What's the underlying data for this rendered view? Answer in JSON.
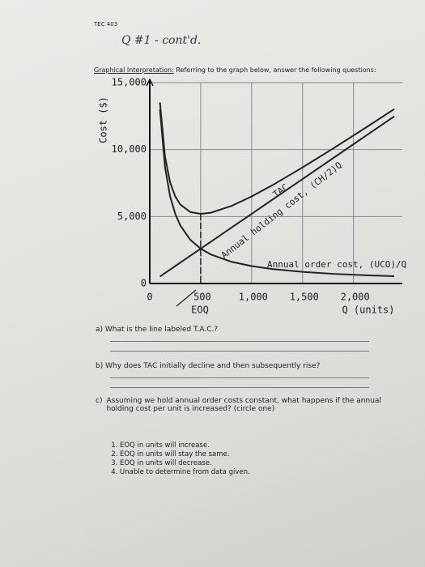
{
  "header": {
    "course": "TEC 403",
    "handwritten": "Q #1 - cont'd."
  },
  "intro": {
    "label": "Graphical Interpretation:",
    "text": "Referring to the graph below, answer the following questions:"
  },
  "chart_data": {
    "type": "line",
    "ylabel": "Cost ($)",
    "xlabel": "Q (units)",
    "eoq_label": "EOQ",
    "eoq": 500,
    "xlim": [
      0,
      2400
    ],
    "ylim": [
      0,
      15000
    ],
    "xticks": [
      0,
      500,
      {
        "value": 1000,
        "label": "1,000"
      },
      {
        "value": 1500,
        "label": "1,500"
      },
      {
        "value": 2000,
        "label": "2,000"
      }
    ],
    "yticks": [
      0,
      {
        "value": 5000,
        "label": "5,000"
      },
      {
        "value": 10000,
        "label": "10,000"
      },
      {
        "value": 15000,
        "label": "15,000"
      }
    ],
    "grid": true,
    "x": [
      100,
      150,
      200,
      250,
      300,
      400,
      500,
      600,
      800,
      1000,
      1200,
      1500,
      1800,
      2100,
      2400
    ],
    "series": [
      {
        "name": "TAC",
        "color": "#222222",
        "values": [
          13520,
          9447,
          7540,
          6500,
          5893,
          5330,
          5200,
          5287,
          5785,
          6500,
          7323,
          8667,
          10082,
          11539,
          13022
        ]
      },
      {
        "name": "Annual holding cost, (CH/2)Q",
        "color": "#222222",
        "values": [
          520,
          780,
          1040,
          1300,
          1560,
          2080,
          2600,
          3120,
          4160,
          5200,
          6240,
          7800,
          9360,
          10920,
          12480
        ]
      },
      {
        "name": "Annual order cost, (UCO)/Q",
        "color": "#222222",
        "values": [
          13000,
          8667,
          6500,
          5200,
          4333,
          3250,
          2600,
          2167,
          1625,
          1300,
          1083,
          867,
          722,
          619,
          542
        ]
      }
    ]
  },
  "questions": [
    {
      "letter": "a)",
      "text": "What is the line labeled T.A.C.?"
    },
    {
      "letter": "b)",
      "text": "Why does TAC initially decline and then subsequently rise?"
    },
    {
      "letter": "c)",
      "text": "Assuming we hold annual order costs constant, what happens if the annual holding cost per unit is increased? (circle one)",
      "options": [
        "EOQ in units will increase.",
        "EOQ in units will stay the same.",
        "EOQ in units will decrease.",
        "Unable to determine from data given."
      ]
    }
  ]
}
